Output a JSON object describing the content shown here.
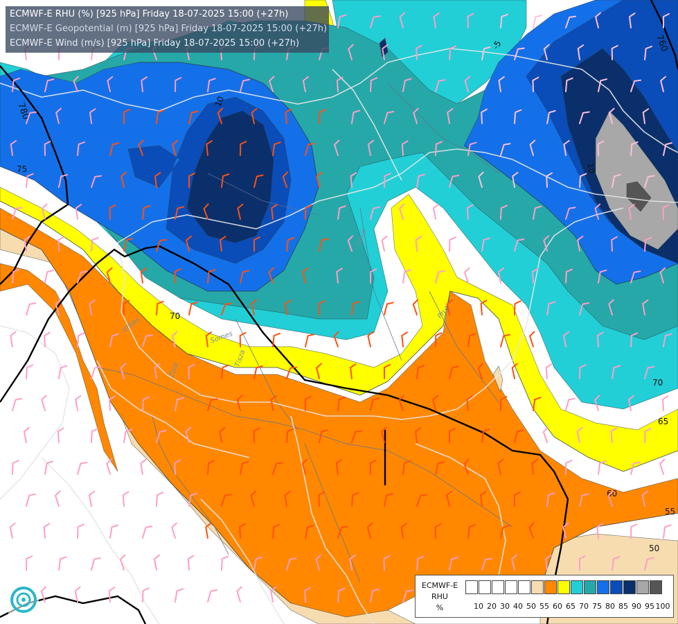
{
  "header": {
    "lines": [
      "ECMWF-E RHU (%) [925 hPa] Friday 18-07-2025 15:00 (+27h)",
      "ECMWF-E Geopotential (m) [925 hPa] Friday 18-07-2025 15:00 (+27h)",
      "ECMWF-E Wind (m/s) [925 hPa] Friday 18-07-2025 15:00 (+27h)"
    ]
  },
  "legend": {
    "label_lines": [
      "ECMWF-E",
      "RHU",
      "%"
    ],
    "bins": [
      {
        "label": "10",
        "color": "#ffffff"
      },
      {
        "label": "20",
        "color": "#ffffff"
      },
      {
        "label": "30",
        "color": "#ffffff"
      },
      {
        "label": "40",
        "color": "#ffffff"
      },
      {
        "label": "50",
        "color": "#ffffff"
      },
      {
        "label": "55",
        "color": "#f7dcb0"
      },
      {
        "label": "60",
        "color": "#ff8800"
      },
      {
        "label": "65",
        "color": "#ffff00"
      },
      {
        "label": "70",
        "color": "#22cfd6"
      },
      {
        "label": "75",
        "color": "#26a8a8"
      },
      {
        "label": "80",
        "color": "#1470e8"
      },
      {
        "label": "85",
        "color": "#0a4db8"
      },
      {
        "label": "90",
        "color": "#0a2f6b"
      },
      {
        "label": "95",
        "color": "#a8a8a8"
      },
      {
        "label": "100",
        "color": "#555555"
      }
    ]
  },
  "map": {
    "colors": {
      "rhu_55": "#f7dcb0",
      "rhu_60": "#ff8800",
      "rhu_65": "#ffff00",
      "rhu_70": "#22cfd6",
      "rhu_75": "#26a8a8",
      "rhu_80": "#1470e8",
      "rhu_85": "#0a4db8",
      "rhu_90": "#0a2f6b",
      "rhu_95": "#a8a8a8",
      "rhu_100": "#555555",
      "geopotential_contour": "#000000",
      "border": "#e8e8e8",
      "river": "#6a7a9a"
    },
    "contour_labels": [
      {
        "text": "75"
      },
      {
        "text": "10"
      },
      {
        "text": "-5"
      },
      {
        "text": "70"
      },
      {
        "text": "70"
      },
      {
        "text": "65"
      },
      {
        "text": "60"
      },
      {
        "text": "55"
      },
      {
        "text": "50"
      },
      {
        "text": "10"
      }
    ],
    "geopotential_labels": [
      {
        "text": "780"
      },
      {
        "text": "760"
      }
    ],
    "river_labels": [
      {
        "text": "Tisza"
      },
      {
        "text": "Prut"
      },
      {
        "text": "Zala"
      },
      {
        "text": "Vrbas"
      },
      {
        "text": "Sava"
      },
      {
        "text": "Somes"
      }
    ]
  }
}
